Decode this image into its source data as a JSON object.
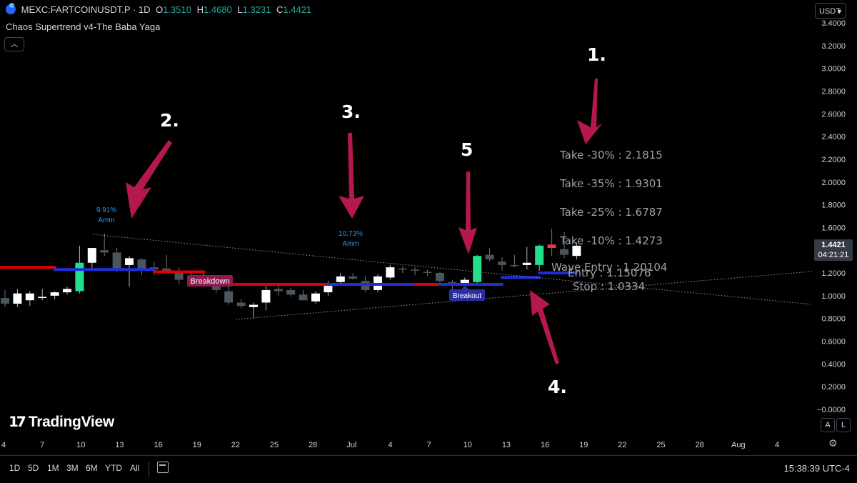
{
  "header": {
    "symbol": "MEXC:FARTCOINUSDT.P · 1D",
    "ohlc": [
      {
        "k": "O",
        "v": "1.3510"
      },
      {
        "k": "H",
        "v": "1.4680"
      },
      {
        "k": "L",
        "v": "1.3231"
      },
      {
        "k": "C",
        "v": "1.4421"
      }
    ],
    "indicator": "Chaos Supertrend v4-The Baba Yaga",
    "collapse_icon": "chevron-up-icon"
  },
  "currency_select": "USDT",
  "price_axis": {
    "ticks": [
      "3.4000",
      "3.2000",
      "3.0000",
      "2.8000",
      "2.6000",
      "2.4000",
      "2.2000",
      "2.0000",
      "1.8000",
      "1.6000",
      "1.4000",
      "1.2000",
      "1.0000",
      "0.8000",
      "0.6000",
      "0.4000",
      "0.2000",
      "−0.0000"
    ],
    "last_price": "1.4421",
    "countdown": "04:21:21"
  },
  "time_axis": {
    "labels": [
      "4",
      "7",
      "10",
      "13",
      "16",
      "19",
      "22",
      "25",
      "28",
      "Jul",
      "4",
      "7",
      "10",
      "13",
      "16",
      "19",
      "22",
      "25",
      "28",
      "Aug",
      "4"
    ]
  },
  "annotations": {
    "numbers": [
      "1.",
      "2.",
      "3.",
      "4.",
      "5"
    ],
    "pct_labels": [
      {
        "pct": "9.91%",
        "name": "Amm"
      },
      {
        "pct": "10.73%",
        "name": "Amm"
      }
    ],
    "breakdown": "Breakdown",
    "breakout": "Breakout",
    "levels": [
      "Take -30% : 2.1815",
      "Take -35% : 1.9301",
      "Take -25% : 1.6787",
      "Take -10% : 1.4273",
      "Wave Entry : 1.20104",
      "Entry : 1.15076",
      "Stop : 1.0334"
    ]
  },
  "scale_buttons": [
    "A",
    "L"
  ],
  "settings_icon": "gear-icon",
  "brand": "TradingView",
  "toolbar": {
    "ranges": [
      "1D",
      "5D",
      "1M",
      "3M",
      "6M",
      "YTD",
      "All"
    ],
    "date_range_icon": "calendar-icon",
    "clock": "15:38:39 UTC-4"
  },
  "colors": {
    "up": "#ffffff",
    "down": "#4a555e",
    "big_up": "#22e08a",
    "supertrend_bear": "#e00000",
    "supertrend_bull": "#1e2fd8",
    "arrow": "#b5184f",
    "breakdown_bg": "#8d1b4f",
    "breakout_bg": "#2a2fa6",
    "pct_label": "#2196f3"
  },
  "chart_data": {
    "type": "candlestick",
    "y_range": [
      -0.05,
      3.45
    ],
    "candles": [
      {
        "o": 0.98,
        "h": 1.05,
        "l": 0.9,
        "c": 0.93
      },
      {
        "o": 0.93,
        "h": 1.06,
        "l": 0.9,
        "c": 1.02
      },
      {
        "o": 0.96,
        "h": 1.04,
        "l": 0.91,
        "c": 1.02
      },
      {
        "o": 0.98,
        "h": 1.06,
        "l": 0.96,
        "c": 0.99
      },
      {
        "o": 1.0,
        "h": 1.04,
        "l": 0.97,
        "c": 1.03
      },
      {
        "o": 1.03,
        "h": 1.08,
        "l": 1.01,
        "c": 1.06
      },
      {
        "o": 1.04,
        "h": 1.44,
        "l": 1.02,
        "c": 1.29
      },
      {
        "o": 1.29,
        "h": 1.42,
        "l": 1.23,
        "c": 1.42
      },
      {
        "o": 1.4,
        "h": 1.55,
        "l": 1.35,
        "c": 1.38
      },
      {
        "o": 1.38,
        "h": 1.42,
        "l": 1.21,
        "c": 1.24
      },
      {
        "o": 1.27,
        "h": 1.35,
        "l": 1.08,
        "c": 1.33
      },
      {
        "o": 1.32,
        "h": 1.33,
        "l": 1.18,
        "c": 1.24
      },
      {
        "o": 1.25,
        "h": 1.3,
        "l": 1.18,
        "c": 1.23
      },
      {
        "o": 1.24,
        "h": 1.36,
        "l": 1.2,
        "c": 1.22
      },
      {
        "o": 1.22,
        "h": 1.25,
        "l": 1.1,
        "c": 1.14
      },
      {
        "o": 1.14,
        "h": 1.2,
        "l": 1.08,
        "c": 1.13
      },
      {
        "o": 1.14,
        "h": 1.22,
        "l": 1.09,
        "c": 1.16
      },
      {
        "o": 1.13,
        "h": 1.15,
        "l": 1.02,
        "c": 1.05
      },
      {
        "o": 1.04,
        "h": 1.08,
        "l": 0.92,
        "c": 0.94
      },
      {
        "o": 0.94,
        "h": 0.97,
        "l": 0.89,
        "c": 0.91
      },
      {
        "o": 0.9,
        "h": 0.94,
        "l": 0.8,
        "c": 0.92
      },
      {
        "o": 0.94,
        "h": 1.1,
        "l": 0.87,
        "c": 1.05
      },
      {
        "o": 1.06,
        "h": 1.09,
        "l": 1.0,
        "c": 1.04
      },
      {
        "o": 1.05,
        "h": 1.07,
        "l": 0.99,
        "c": 1.01
      },
      {
        "o": 1.01,
        "h": 1.05,
        "l": 0.96,
        "c": 0.96
      },
      {
        "o": 0.95,
        "h": 1.04,
        "l": 0.93,
        "c": 1.02
      },
      {
        "o": 1.03,
        "h": 1.13,
        "l": 1.0,
        "c": 1.11
      },
      {
        "o": 1.12,
        "h": 1.2,
        "l": 1.1,
        "c": 1.17
      },
      {
        "o": 1.17,
        "h": 1.2,
        "l": 1.14,
        "c": 1.15
      },
      {
        "o": 1.13,
        "h": 1.17,
        "l": 1.03,
        "c": 1.05
      },
      {
        "o": 1.05,
        "h": 1.19,
        "l": 1.03,
        "c": 1.17
      },
      {
        "o": 1.16,
        "h": 1.27,
        "l": 1.14,
        "c": 1.25
      },
      {
        "o": 1.24,
        "h": 1.26,
        "l": 1.2,
        "c": 1.23
      },
      {
        "o": 1.23,
        "h": 1.25,
        "l": 1.18,
        "c": 1.22
      },
      {
        "o": 1.21,
        "h": 1.23,
        "l": 1.17,
        "c": 1.2
      },
      {
        "o": 1.2,
        "h": 1.21,
        "l": 1.09,
        "c": 1.13
      },
      {
        "o": 1.12,
        "h": 1.14,
        "l": 1.05,
        "c": 1.09
      },
      {
        "o": 1.09,
        "h": 1.16,
        "l": 1.04,
        "c": 1.14
      },
      {
        "o": 1.12,
        "h": 1.36,
        "l": 1.11,
        "c": 1.35
      },
      {
        "o": 1.36,
        "h": 1.42,
        "l": 1.3,
        "c": 1.32
      },
      {
        "o": 1.3,
        "h": 1.34,
        "l": 1.22,
        "c": 1.27
      },
      {
        "o": 1.27,
        "h": 1.36,
        "l": 1.25,
        "c": 1.26
      },
      {
        "o": 1.27,
        "h": 1.43,
        "l": 1.23,
        "c": 1.29
      },
      {
        "o": 1.27,
        "h": 1.45,
        "l": 1.22,
        "c": 1.44
      },
      {
        "o": 1.45,
        "h": 1.59,
        "l": 1.35,
        "c": 1.42
      },
      {
        "o": 1.41,
        "h": 1.56,
        "l": 1.33,
        "c": 1.36
      },
      {
        "o": 1.35,
        "h": 1.47,
        "l": 1.32,
        "c": 1.44
      }
    ],
    "supertrend": [
      {
        "i0": 0,
        "i1": 4,
        "v": 1.25,
        "side": "bear"
      },
      {
        "i0": 4,
        "i1": 12,
        "v": 1.23,
        "side": "bull"
      },
      {
        "i0": 12,
        "i1": 16,
        "v": 1.21,
        "side": "bear"
      },
      {
        "i0": 16,
        "i1": 26,
        "v": 1.1,
        "side": "bear"
      },
      {
        "i0": 26,
        "i1": 33,
        "v": 1.1,
        "side": "bull"
      },
      {
        "i0": 33,
        "i1": 35,
        "v": 1.1,
        "side": "bear"
      },
      {
        "i0": 35,
        "i1": 40,
        "v": 1.1,
        "side": "bull"
      },
      {
        "i0": 40,
        "i1": 43,
        "v": 1.16,
        "side": "bull"
      },
      {
        "i0": 43,
        "i1": 46,
        "v": 1.2,
        "side": "bull"
      }
    ]
  }
}
